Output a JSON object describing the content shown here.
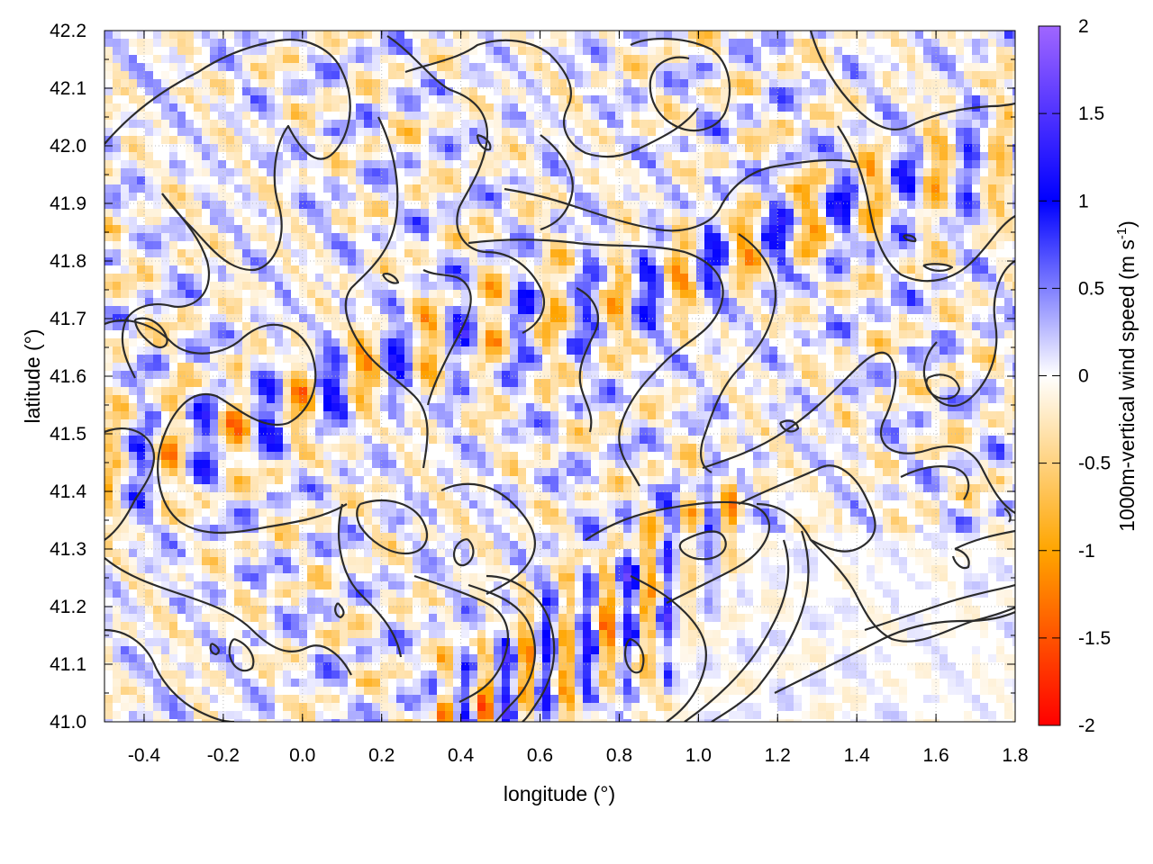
{
  "chart_data": {
    "type": "heatmap",
    "title": "",
    "xlabel": "longitude (°)",
    "ylabel": "latitude (°)",
    "colorbar_label": "1000m-vertical wind speed (m s",
    "colorbar_label_sup": "-1",
    "colorbar_label_end": ")",
    "xlim": [
      -0.5,
      1.8
    ],
    "ylim": [
      41.0,
      42.2
    ],
    "x_ticks": [
      -0.4,
      -0.2,
      0.0,
      0.2,
      0.4,
      0.6,
      0.8,
      1.0,
      1.2,
      1.4,
      1.6,
      1.8
    ],
    "x_tick_labels": [
      "-0.4",
      "-0.2",
      "0.0",
      "0.2",
      "0.4",
      "0.6",
      "0.8",
      "1.0",
      "1.2",
      "1.4",
      "1.6",
      "1.8"
    ],
    "y_ticks": [
      41.0,
      41.1,
      41.2,
      41.3,
      41.4,
      41.5,
      41.6,
      41.7,
      41.8,
      41.9,
      42.0,
      42.1,
      42.2
    ],
    "y_tick_labels": [
      "41.0",
      "41.1",
      "41.2",
      "41.3",
      "41.4",
      "41.5",
      "41.6",
      "41.7",
      "41.8",
      "41.9",
      "42.0",
      "42.1",
      "42.2"
    ],
    "colorbar": {
      "range": [
        -2,
        2
      ],
      "ticks": [
        2,
        1.5,
        1,
        0.5,
        0,
        -0.5,
        -1,
        -1.5,
        -2
      ],
      "tick_labels": [
        "2",
        "1.5",
        "1",
        "0.5",
        "0",
        "-0.5",
        "-1",
        "-1.5",
        "-2"
      ],
      "stops": [
        {
          "value": -2.0,
          "color": "#ff0000"
        },
        {
          "value": -1.0,
          "color": "#ffa500"
        },
        {
          "value": 0.0,
          "color": "#ffffff"
        },
        {
          "value": 1.0,
          "color": "#0000ff"
        },
        {
          "value": 2.0,
          "color": "#a066ff"
        }
      ]
    },
    "grid": true,
    "contour_color": "#2b2b2b",
    "frame_color": "#000000",
    "gridline_color": "#bbbbbb"
  }
}
